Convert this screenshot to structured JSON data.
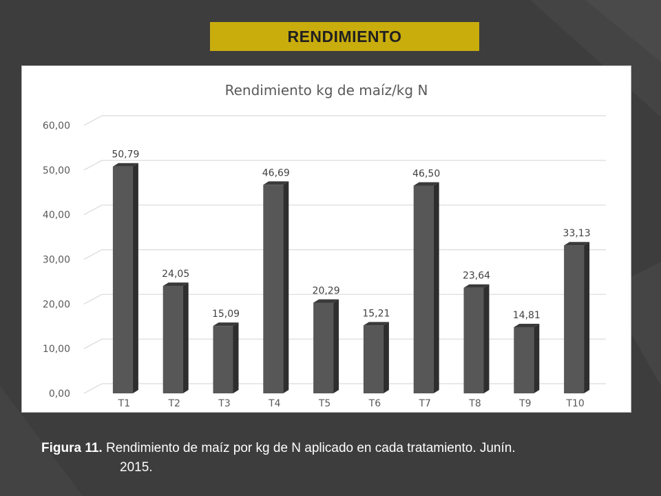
{
  "slide": {
    "title": "RENDIMIENTO",
    "caption_label": "Figura 11.",
    "caption_text": "Rendimiento de maíz por kg de N aplicado en cada tratamiento. Junín.",
    "caption_text_2": "2015."
  },
  "colors": {
    "background": "#3d3d3d",
    "title_box": "#c9ad0d",
    "bar_front": "#575757",
    "bar_side": "#2e2e2e",
    "bar_top": "#3a3a3a"
  },
  "chart_data": {
    "type": "bar",
    "title": "Rendimiento kg de maíz/kg N",
    "categories": [
      "T1",
      "T2",
      "T3",
      "T4",
      "T5",
      "T6",
      "T7",
      "T8",
      "T9",
      "T10"
    ],
    "values": [
      50.79,
      24.05,
      15.09,
      46.69,
      20.29,
      15.21,
      46.5,
      23.64,
      14.81,
      33.13
    ],
    "data_labels": [
      "50,79",
      "24,05",
      "15,09",
      "46,69",
      "20,29",
      "15,21",
      "46,50",
      "23,64",
      "14,81",
      "33,13"
    ],
    "ylim": [
      0,
      60
    ],
    "yticks": [
      "0,00",
      "10,00",
      "20,00",
      "30,00",
      "40,00",
      "50,00",
      "60,00"
    ],
    "grid": true,
    "legend": "none",
    "style": "3d-columns"
  }
}
